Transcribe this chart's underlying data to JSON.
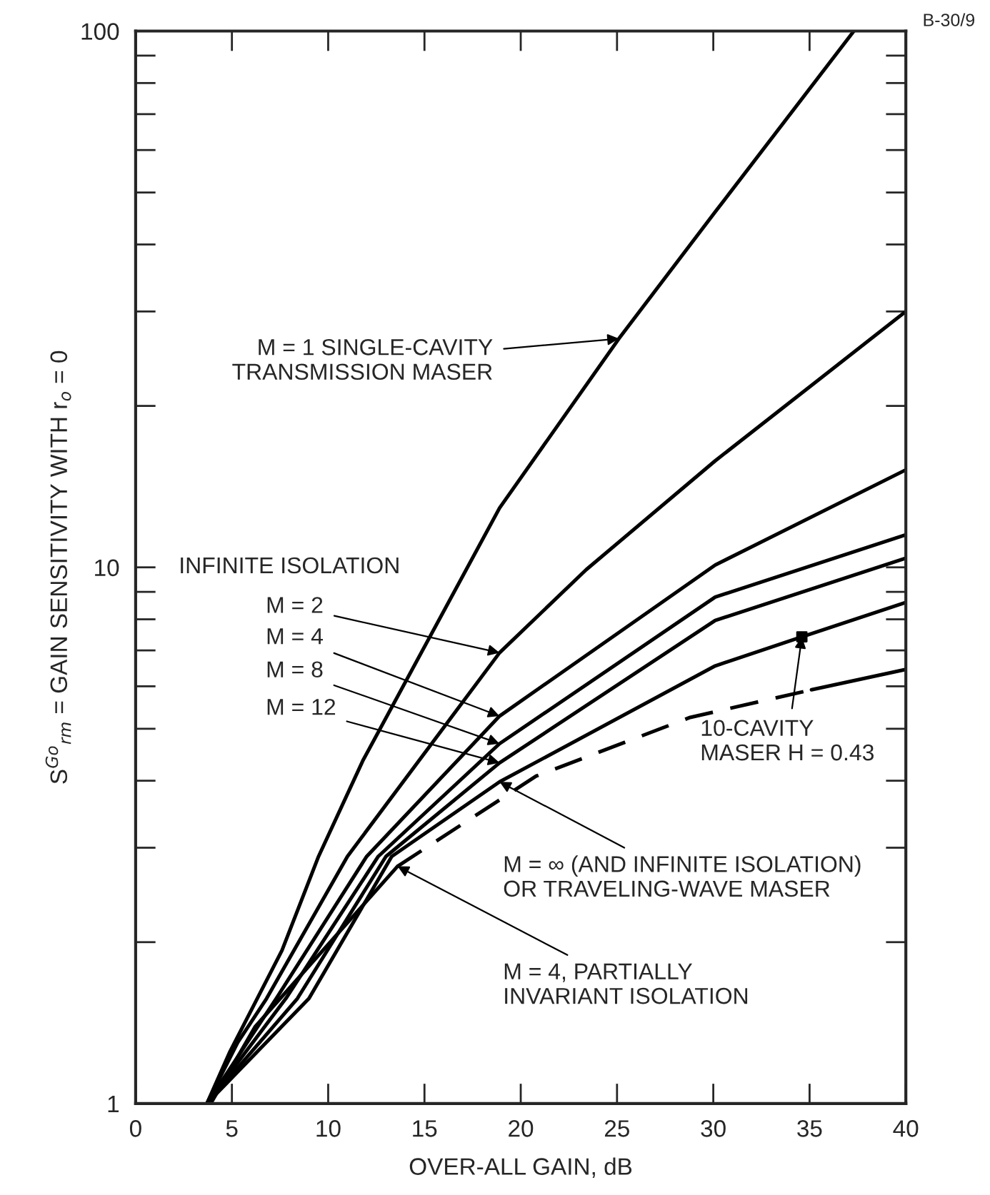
{
  "chart_data": {
    "type": "line",
    "xlabel": "OVER-ALL GAIN, dB",
    "ylabel": "S$^{Go}$$_{rm}$ = GAIN SENSITIVITY WITH r$_{o}$ = 0",
    "log": "y",
    "grid": false,
    "legend": false,
    "xlim": [
      0,
      40
    ],
    "xticks": [
      0,
      5,
      10,
      15,
      20,
      25,
      30,
      35,
      40
    ],
    "ylim": [
      1,
      100
    ],
    "yticks": [
      1,
      {
        "value": 2,
        "label": null
      },
      {
        "value": 3,
        "label": null
      },
      {
        "value": 4,
        "label": null
      },
      {
        "value": 5,
        "label": null
      },
      {
        "value": 6,
        "label": null
      },
      {
        "value": 7,
        "label": null
      },
      {
        "value": 8,
        "label": null
      },
      {
        "value": 9,
        "label": null
      },
      10,
      {
        "value": 20,
        "label": null
      },
      {
        "value": 30,
        "label": null
      },
      {
        "value": 40,
        "label": null
      },
      {
        "value": 50,
        "label": null
      },
      {
        "value": 60,
        "label": null
      },
      {
        "value": 70,
        "label": null
      },
      {
        "value": 80,
        "label": null
      },
      {
        "value": 90,
        "label": null
      },
      100
    ],
    "series": [
      {
        "type": "line",
        "color": "#000000",
        "line_style": "solid",
        "x": [
          3.7,
          4.9,
          7.6,
          9.5,
          11.8,
          18.9,
          25.1,
          30.1,
          37.3
        ],
        "values": [
          1,
          1.25,
          1.93,
          2.89,
          4.36,
          12.9,
          26.7,
          46,
          100
        ]
      },
      {
        "type": "line",
        "color": "#000000",
        "line_style": "solid",
        "x": [
          3.7,
          5.3,
          6.8,
          11.0,
          18.9,
          23.4,
          30.1,
          40
        ],
        "values": [
          1,
          1.3,
          1.57,
          2.89,
          6.93,
          9.9,
          15.8,
          30
        ]
      },
      {
        "type": "line",
        "color": "#000000",
        "line_style": "solid",
        "x": [
          3.7,
          7.3,
          12.0,
          18.9,
          30.1,
          40
        ],
        "values": [
          1,
          1.57,
          2.89,
          5.28,
          10.1,
          15.2
        ]
      },
      {
        "type": "line",
        "color": "#000000",
        "line_style": "solid",
        "x": [
          3.7,
          7.8,
          12.6,
          18.9,
          30.1,
          40
        ],
        "values": [
          1,
          1.57,
          2.89,
          4.69,
          8.8,
          11.5
        ]
      },
      {
        "type": "line",
        "color": "#000000",
        "line_style": "solid",
        "x": [
          3.7,
          8.4,
          13.0,
          18.9,
          30.1,
          40
        ],
        "values": [
          1,
          1.57,
          2.89,
          4.32,
          7.96,
          10.4
        ]
      },
      {
        "type": "line",
        "color": "#000000",
        "line_style": "solid",
        "x": [
          3.7,
          9.0,
          13.3,
          18.9,
          30.1,
          34.6,
          40
        ],
        "values": [
          1,
          1.57,
          2.89,
          3.98,
          6.55,
          7.42,
          8.6
        ]
      },
      {
        "type": "line",
        "color": "#000000",
        "line_style": "solid",
        "x": [
          3.9,
          6.2,
          13.6
        ],
        "values": [
          1,
          1.39,
          2.77
        ]
      },
      {
        "type": "line",
        "color": "#000000",
        "line_style": "dashed",
        "x": [
          13.6,
          20.8,
          28.8,
          35.1
        ],
        "values": [
          2.77,
          4.08,
          5.25,
          5.91
        ]
      },
      {
        "type": "line",
        "color": "#000000",
        "line_style": "solid",
        "x": [
          35.1,
          40
        ],
        "values": [
          5.91,
          6.45
        ]
      },
      {
        "type": "scatter",
        "color": "#000000",
        "marker": "square",
        "x": [
          34.6
        ],
        "values": [
          7.42
        ]
      }
    ],
    "annotations": [
      {
        "text": "M = 1 SINGLE-CAVITY\nTRANSMISSION MASER",
        "x": 25.1,
        "y": 26.7
      },
      "INFINITE ISOLATION",
      {
        "text": "M = 2",
        "x": 18.9,
        "y": 6.93
      },
      {
        "text": "M = 4",
        "x": 18.9,
        "y": 5.28
      },
      {
        "text": "M = 8",
        "x": 18.9,
        "y": 4.69
      },
      {
        "text": "M = 12",
        "x": 18.9,
        "y": 4.32
      },
      {
        "text": "10-CAVITY\nMASER H = 0.43",
        "x": 34.6,
        "y": 7.42
      },
      {
        "text": "M = ∞ (AND INFINITE ISOLATION)\nOR TRAVELING-WAVE MASER",
        "x": 18.9,
        "y": 3.98
      },
      {
        "text": "M = 4, PARTIALLY\nINVARIANT ISOLATION",
        "x": 13.6,
        "y": 2.77
      },
      "B-30/9"
    ]
  }
}
